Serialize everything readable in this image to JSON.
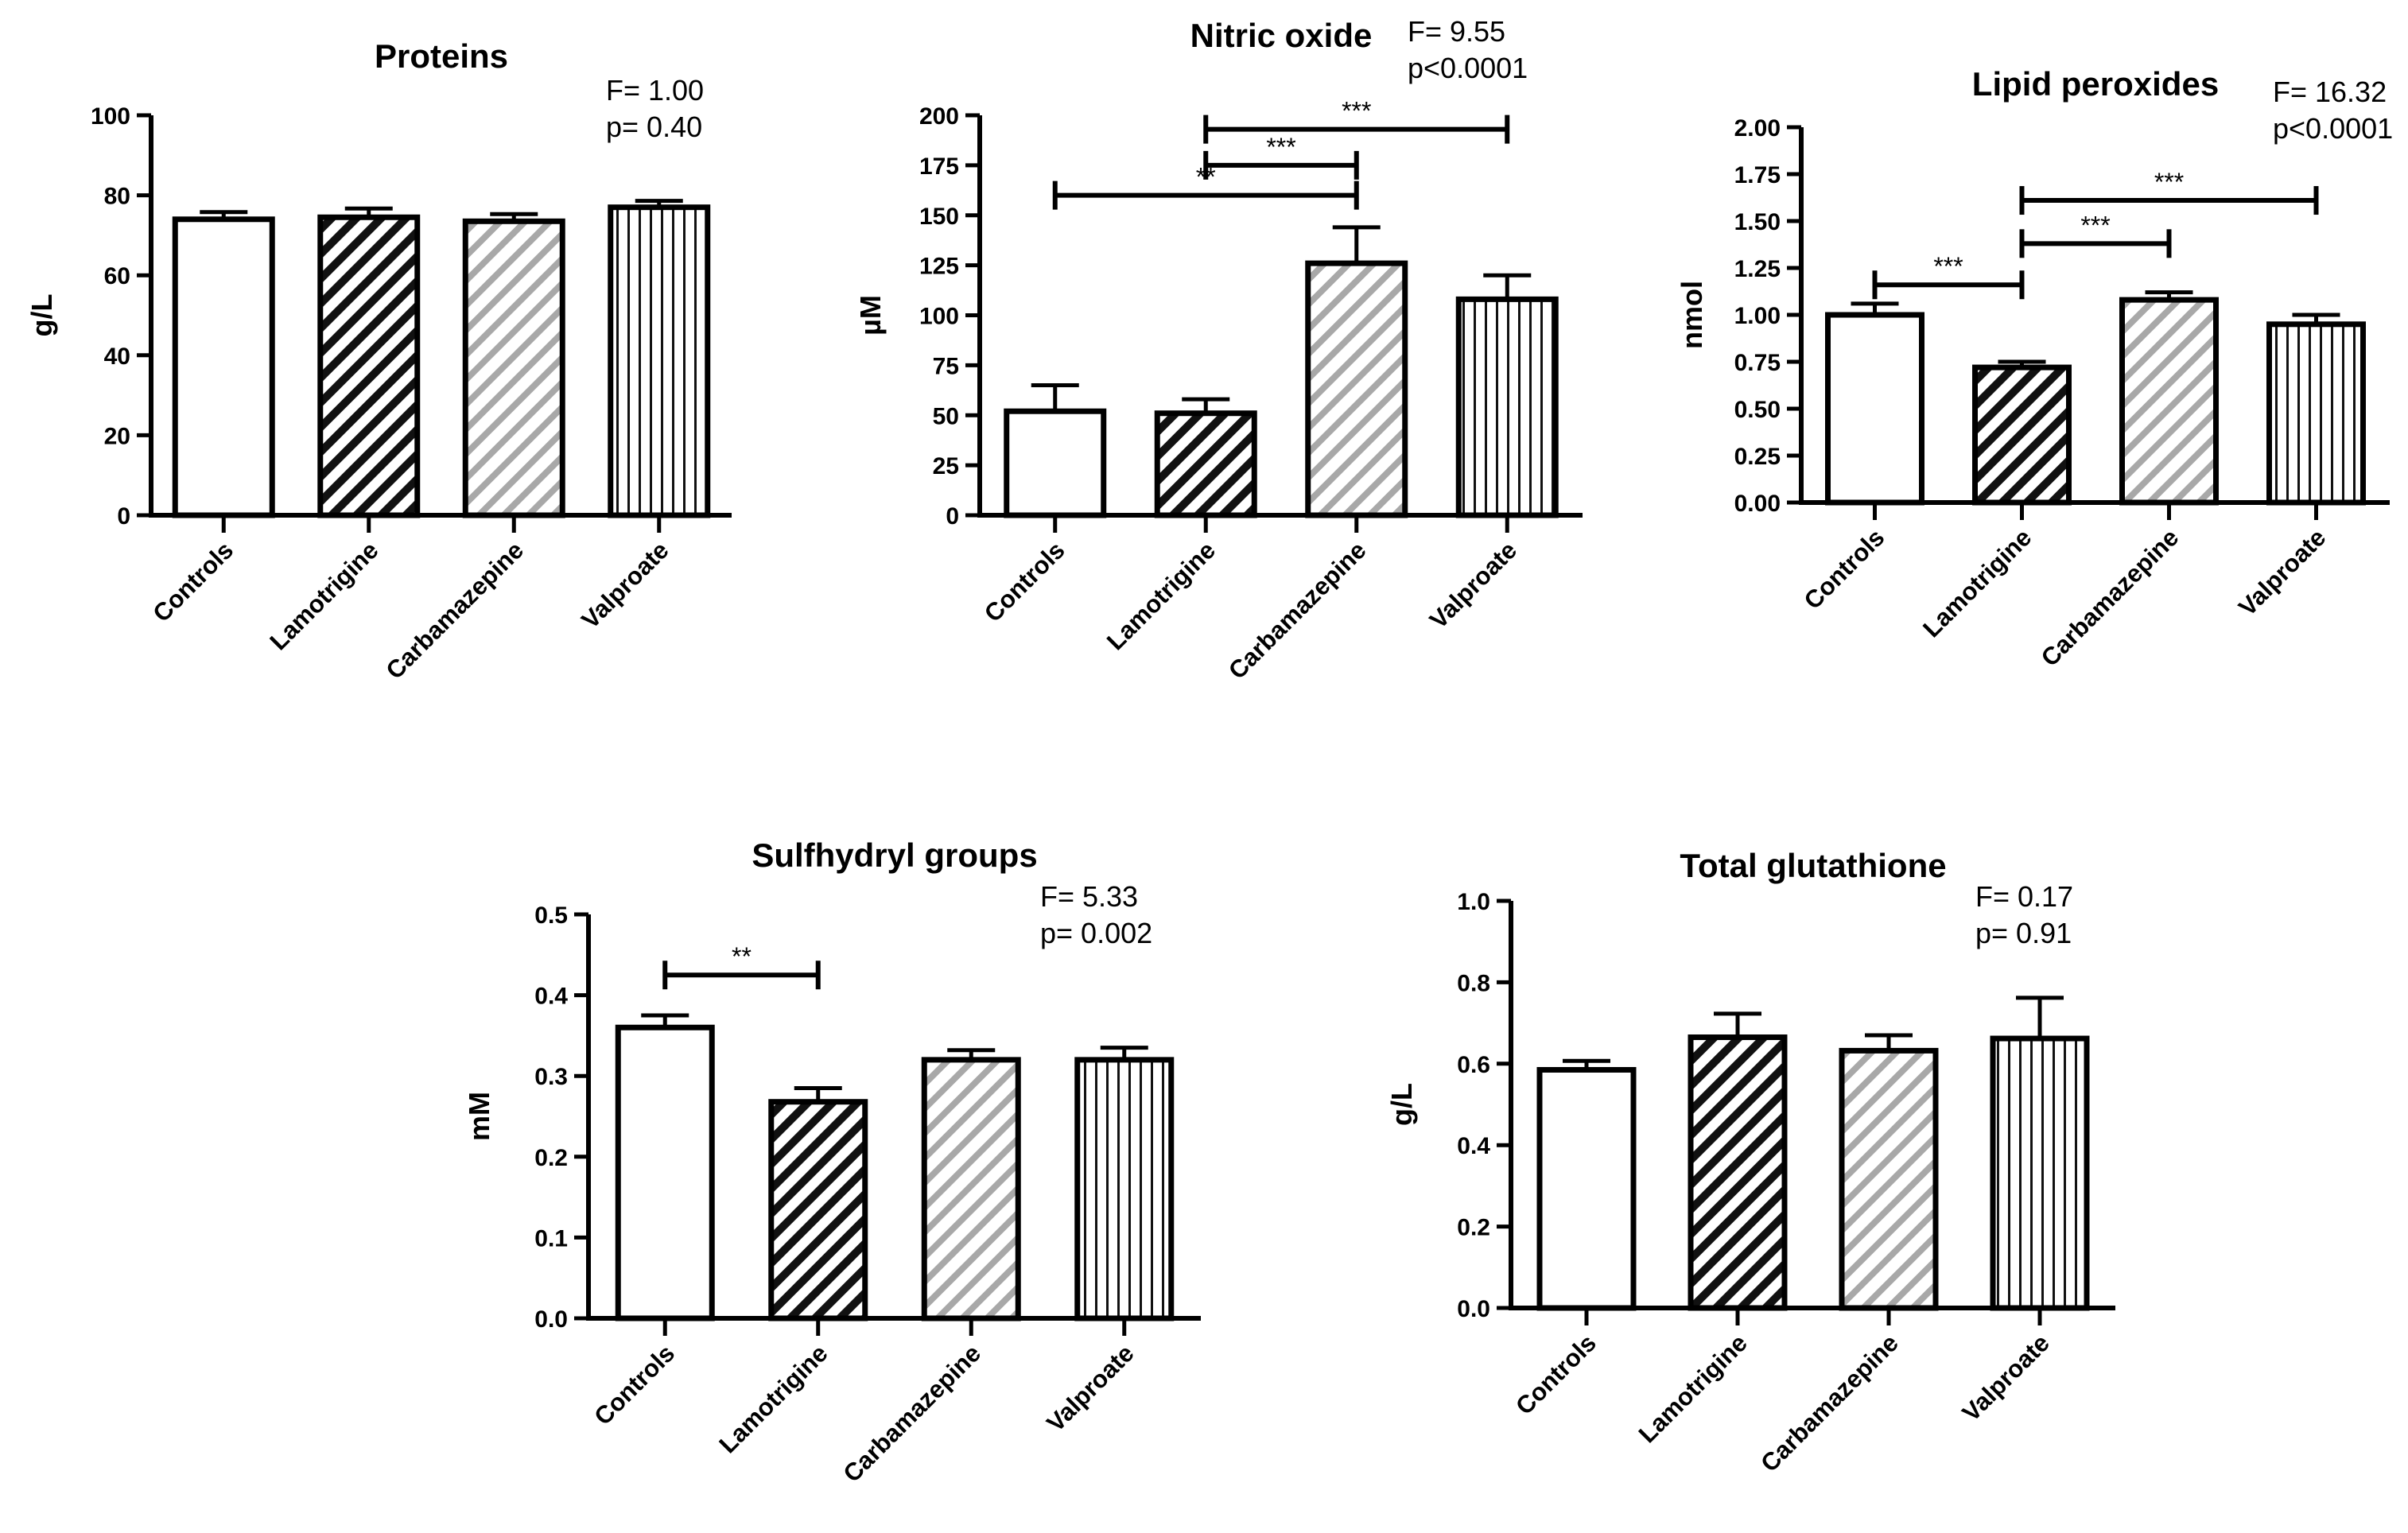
{
  "chart_data": [
    {
      "type": "bar",
      "title": "Proteins",
      "ylabel": "g/L",
      "xlabel": "",
      "ylim": [
        0,
        100
      ],
      "yticks": [
        "0",
        "20",
        "40",
        "60",
        "80",
        "100"
      ],
      "categories": [
        "Controls",
        "Lamotrigine",
        "Carbamazepine",
        "Valproate"
      ],
      "values": [
        74,
        74.5,
        73.5,
        77
      ],
      "errors": [
        1.8,
        2.2,
        1.8,
        1.6
      ],
      "stats": [
        "F= 1.00",
        "p= 0.40"
      ],
      "significance": []
    },
    {
      "type": "bar",
      "title": "Nitric oxide",
      "ylabel": "µM",
      "xlabel": "",
      "ylim": [
        0,
        200
      ],
      "yticks": [
        "0",
        "25",
        "50",
        "75",
        "100",
        "125",
        "150",
        "175",
        "200"
      ],
      "categories": [
        "Controls",
        "Lamotrigine",
        "Carbamazepine",
        "Valproate"
      ],
      "values": [
        52,
        51,
        126,
        108
      ],
      "errors": [
        13,
        7,
        18,
        12
      ],
      "stats": [
        "F= 9.55",
        "p<0.0001"
      ],
      "significance": [
        {
          "from": 0,
          "to": 2,
          "y": 160,
          "label": "**"
        },
        {
          "from": 1,
          "to": 2,
          "y": 175,
          "label": "***"
        },
        {
          "from": 1,
          "to": 3,
          "y": 193,
          "label": "***"
        }
      ]
    },
    {
      "type": "bar",
      "title": "Lipid peroxides",
      "ylabel": "nmol",
      "xlabel": "",
      "ylim": [
        0,
        2
      ],
      "yticks": [
        "0.00",
        "0.25",
        "0.50",
        "0.75",
        "1.00",
        "1.25",
        "1.50",
        "1.75",
        "2.00"
      ],
      "categories": [
        "Controls",
        "Lamotrigine",
        "Carbamazepine",
        "Valproate"
      ],
      "values": [
        1.0,
        0.72,
        1.08,
        0.95
      ],
      "errors": [
        0.06,
        0.03,
        0.04,
        0.05
      ],
      "stats": [
        "F= 16.32",
        "p<0.0001"
      ],
      "significance": [
        {
          "from": 0,
          "to": 1,
          "y": 1.16,
          "label": "***"
        },
        {
          "from": 1,
          "to": 2,
          "y": 1.38,
          "label": "***"
        },
        {
          "from": 1,
          "to": 3,
          "y": 1.61,
          "label": "***"
        }
      ]
    },
    {
      "type": "bar",
      "title": "Sulfhydryl groups",
      "ylabel": "mM",
      "xlabel": "",
      "ylim": [
        0,
        0.5
      ],
      "yticks": [
        "0.0",
        "0.1",
        "0.2",
        "0.3",
        "0.4",
        "0.5"
      ],
      "categories": [
        "Controls",
        "Lamotrigine",
        "Carbamazepine",
        "Valproate"
      ],
      "values": [
        0.36,
        0.268,
        0.32,
        0.32
      ],
      "errors": [
        0.015,
        0.017,
        0.012,
        0.015
      ],
      "stats": [
        "F= 5.33",
        "p= 0.002"
      ],
      "significance": [
        {
          "from": 0,
          "to": 1,
          "y": 0.425,
          "label": "**"
        }
      ]
    },
    {
      "type": "bar",
      "title": "Total glutathione",
      "ylabel": "g/L",
      "xlabel": "",
      "ylim": [
        0,
        1.0
      ],
      "yticks": [
        "0.0",
        "0.2",
        "0.4",
        "0.6",
        "0.8",
        "1.0"
      ],
      "categories": [
        "Controls",
        "Lamotrigine",
        "Carbamazepine",
        "Valproate"
      ],
      "values": [
        0.585,
        0.665,
        0.632,
        0.662
      ],
      "errors": [
        0.022,
        0.058,
        0.038,
        0.1
      ],
      "stats": [
        "F= 0.17",
        "p= 0.91"
      ],
      "significance": []
    }
  ]
}
